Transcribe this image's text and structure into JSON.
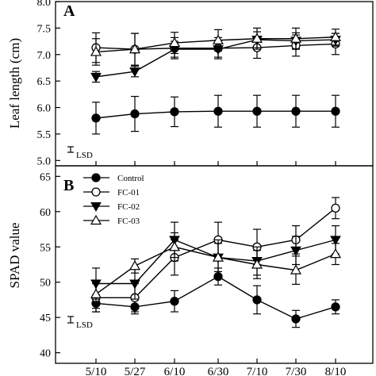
{
  "chart_data": [
    {
      "type": "line",
      "panel_label": "A",
      "ylabel": "Leaf length (cm)",
      "xlabel": "",
      "categories": [
        "5/10",
        "5/27",
        "6/10",
        "6/30",
        "7/10",
        "7/30",
        "8/10"
      ],
      "ylim": [
        4.9,
        8.0
      ],
      "yticks": [
        "5.0",
        "5.5",
        "6.0",
        "6.5",
        "7.0",
        "7.5",
        "8.0"
      ],
      "lsd_label": "LSD",
      "series": [
        {
          "name": "Control",
          "marker": "filled-circle",
          "values": [
            5.8,
            5.88,
            5.92,
            5.93,
            5.93,
            5.93,
            5.93
          ],
          "errors": [
            0.3,
            0.33,
            0.28,
            0.3,
            0.3,
            0.3,
            0.3
          ]
        },
        {
          "name": "FC-01",
          "marker": "open-circle",
          "values": [
            7.13,
            7.1,
            7.12,
            7.12,
            7.13,
            7.17,
            7.2
          ],
          "errors": [
            0.28,
            0.3,
            0.2,
            0.2,
            0.2,
            0.2,
            0.2
          ]
        },
        {
          "name": "FC-02",
          "marker": "filled-triangle-down",
          "values": [
            6.58,
            6.68,
            7.1,
            7.1,
            7.28,
            7.26,
            7.28
          ],
          "errors": [
            0.1,
            0.1,
            0.15,
            0.15,
            0.15,
            0.15,
            0.12
          ]
        },
        {
          "name": "FC-03",
          "marker": "open-triangle-up",
          "values": [
            7.05,
            7.1,
            7.22,
            7.27,
            7.3,
            7.3,
            7.33
          ],
          "errors": [
            0.25,
            0.3,
            0.2,
            0.2,
            0.2,
            0.2,
            0.15
          ]
        }
      ]
    },
    {
      "type": "line",
      "panel_label": "B",
      "ylabel": "SPAD value",
      "xlabel": "",
      "categories": [
        "5/10",
        "5/27",
        "6/10",
        "6/30",
        "7/10",
        "7/30",
        "8/10"
      ],
      "ylim": [
        38.5,
        66.5
      ],
      "yticks": [
        "40",
        "45",
        "50",
        "55",
        "60",
        "65"
      ],
      "lsd_label": "LSD",
      "legend_position": "top-left",
      "series": [
        {
          "name": "Control",
          "marker": "filled-circle",
          "values": [
            47.0,
            46.5,
            47.3,
            50.8,
            47.5,
            44.8,
            46.5
          ],
          "errors": [
            1.2,
            1.0,
            1.5,
            1.2,
            2.0,
            1.2,
            1.0
          ]
        },
        {
          "name": "FC-01",
          "marker": "open-circle",
          "values": [
            47.8,
            47.8,
            53.5,
            56.0,
            55.0,
            56.0,
            60.5
          ],
          "errors": [
            2.0,
            2.0,
            2.5,
            2.5,
            2.5,
            2.0,
            1.5
          ]
        },
        {
          "name": "FC-02",
          "marker": "filled-triangle-down",
          "values": [
            49.8,
            49.8,
            56.0,
            53.5,
            53.0,
            54.5,
            56.0
          ],
          "errors": [
            2.2,
            2.2,
            2.5,
            2.5,
            2.0,
            2.0,
            2.0
          ]
        },
        {
          "name": "FC-03",
          "marker": "open-triangle-up",
          "values": [
            48.3,
            52.3,
            55.0,
            53.5,
            52.5,
            51.7,
            54.0
          ],
          "errors": [
            2.0,
            1.0,
            2.0,
            2.0,
            2.0,
            2.0,
            1.5
          ]
        }
      ]
    }
  ]
}
